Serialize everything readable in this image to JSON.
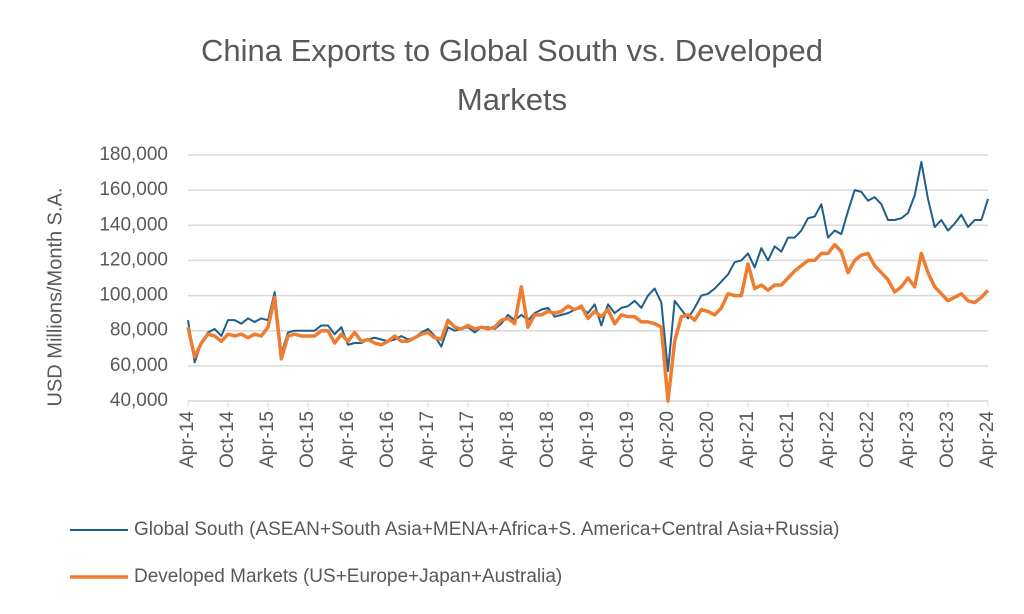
{
  "chart_data": {
    "type": "line",
    "title": "China Exports to Global South vs. Developed Markets",
    "y_label": "USD Millions/Month S.A.",
    "categories": [
      "Apr-14",
      null,
      null,
      null,
      null,
      null,
      "Oct-14",
      null,
      null,
      null,
      null,
      null,
      "Apr-15",
      null,
      null,
      null,
      null,
      null,
      "Oct-15",
      null,
      null,
      null,
      null,
      null,
      "Apr-16",
      null,
      null,
      null,
      null,
      null,
      "Oct-16",
      null,
      null,
      null,
      null,
      null,
      "Apr-17",
      null,
      null,
      null,
      null,
      null,
      "Oct-17",
      null,
      null,
      null,
      null,
      null,
      "Apr-18",
      null,
      null,
      null,
      null,
      null,
      "Oct-18",
      null,
      null,
      null,
      null,
      null,
      "Apr-19",
      null,
      null,
      null,
      null,
      null,
      "Oct-19",
      null,
      null,
      null,
      null,
      null,
      "Apr-20",
      null,
      null,
      null,
      null,
      null,
      "Oct-20",
      null,
      null,
      null,
      null,
      null,
      "Apr-21",
      null,
      null,
      null,
      null,
      null,
      "Oct-21",
      null,
      null,
      null,
      null,
      null,
      "Apr-22",
      null,
      null,
      null,
      null,
      null,
      "Oct-22",
      null,
      null,
      null,
      null,
      null,
      "Apr-23",
      null,
      null,
      null,
      null,
      null,
      "Oct-23",
      null,
      null,
      null,
      null,
      null,
      "Apr-24"
    ],
    "series": [
      {
        "name": "Global South (ASEAN+South Asia+MENA+Africa+S. America+Central Asia+Russia)",
        "color": "#1f5f8b",
        "values": [
          86000,
          62000,
          73000,
          79000,
          81000,
          77000,
          86000,
          86000,
          84000,
          87000,
          85000,
          87000,
          86000,
          102000,
          67000,
          79000,
          80000,
          80000,
          80000,
          80000,
          83000,
          83000,
          78000,
          82000,
          72000,
          73000,
          73000,
          75000,
          76000,
          75000,
          74000,
          75000,
          77000,
          75000,
          76000,
          79000,
          81000,
          77000,
          71000,
          82000,
          80000,
          81000,
          82000,
          79000,
          82000,
          82000,
          81000,
          84000,
          89000,
          86000,
          89000,
          86000,
          90000,
          92000,
          93000,
          88000,
          89000,
          90000,
          92000,
          93000,
          90000,
          95000,
          83000,
          95000,
          90000,
          93000,
          94000,
          97000,
          93000,
          100000,
          104000,
          96000,
          57000,
          97000,
          92000,
          87000,
          93000,
          100000,
          101000,
          104000,
          108000,
          112000,
          119000,
          120000,
          124000,
          116000,
          127000,
          120000,
          128000,
          125000,
          133000,
          133000,
          137000,
          144000,
          145000,
          152000,
          133000,
          137000,
          135000,
          148000,
          160000,
          159000,
          154000,
          156000,
          152000,
          143000,
          143000,
          144000,
          147000,
          157000,
          176000,
          155000,
          139000,
          143000,
          137000,
          141000,
          146000,
          139000,
          143000,
          143000,
          155000
        ]
      },
      {
        "name": "Developed Markets (US+Europe+Japan+Australia)",
        "color": "#ed7d31",
        "values": [
          82000,
          65000,
          73000,
          78000,
          77000,
          74000,
          78000,
          77000,
          78000,
          76000,
          78000,
          77000,
          82000,
          99000,
          64000,
          77000,
          78000,
          77000,
          77000,
          77000,
          80000,
          80000,
          73000,
          78000,
          74000,
          79000,
          74000,
          75000,
          73000,
          72000,
          74000,
          77000,
          74000,
          74000,
          76000,
          78000,
          79000,
          76000,
          75000,
          86000,
          82000,
          81000,
          83000,
          81000,
          82000,
          81000,
          82000,
          86000,
          87000,
          84000,
          105000,
          82000,
          89000,
          89000,
          91000,
          90000,
          91000,
          94000,
          92000,
          94000,
          87000,
          91000,
          88000,
          92000,
          84000,
          89000,
          88000,
          88000,
          85000,
          85000,
          84000,
          82000,
          40000,
          74000,
          88000,
          89000,
          86000,
          92000,
          91000,
          89000,
          93000,
          101000,
          100000,
          100000,
          118000,
          104000,
          106000,
          103000,
          106000,
          106000,
          110000,
          114000,
          117000,
          120000,
          120000,
          124000,
          124000,
          129000,
          125000,
          113000,
          120000,
          123000,
          124000,
          117000,
          113000,
          109000,
          102000,
          105000,
          110000,
          105000,
          124000,
          113000,
          105000,
          101000,
          97000,
          99000,
          101000,
          97000,
          96000,
          99000,
          103000
        ]
      }
    ],
    "ylim": [
      40000,
      180000
    ],
    "yticks": [
      {
        "value": 40000,
        "label": "40,000"
      },
      {
        "value": 60000,
        "label": "60,000"
      },
      {
        "value": 80000,
        "label": "80,000"
      },
      {
        "value": 100000,
        "label": "100,000"
      },
      {
        "value": 120000,
        "label": "120,000"
      },
      {
        "value": 140000,
        "label": "140,000"
      },
      {
        "value": 160000,
        "label": "160,000"
      },
      {
        "value": 180000,
        "label": "180,000"
      }
    ],
    "grid": true
  }
}
